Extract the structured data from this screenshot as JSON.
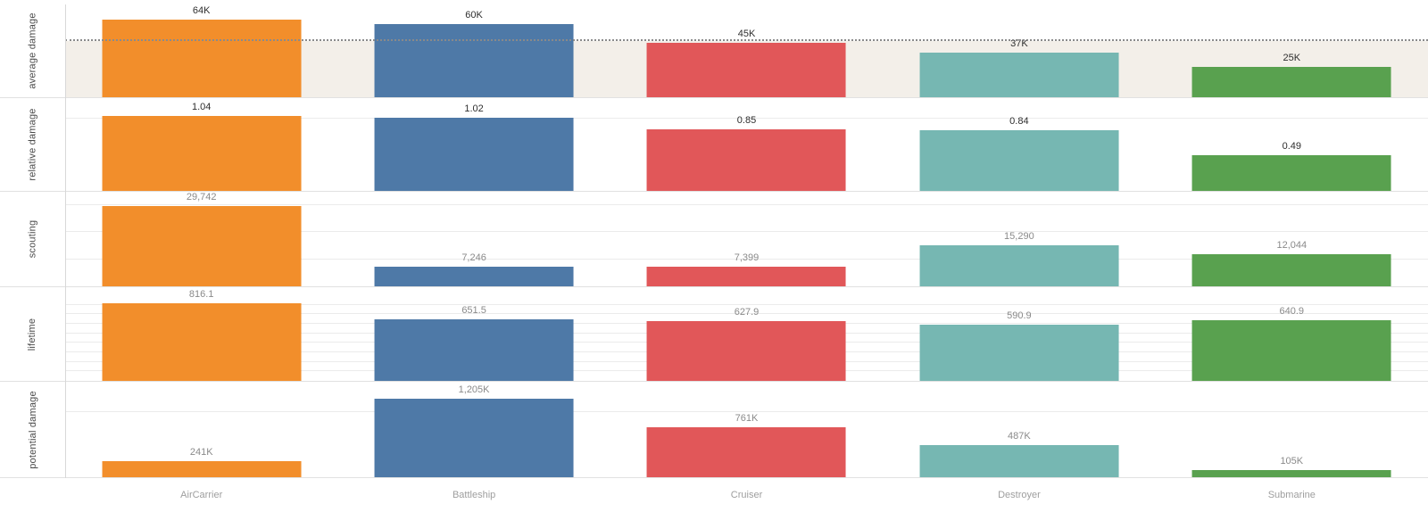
{
  "chart_data": {
    "type": "bar",
    "title": "",
    "categories": [
      "AirCarrier",
      "Battleship",
      "Cruiser",
      "Destroyer",
      "Submarine"
    ],
    "legend_position": "none",
    "grid": true,
    "rows": [
      {
        "metric": "average damage",
        "values": [
          64000,
          60000,
          45000,
          37000,
          25000
        ],
        "value_labels": [
          "64K",
          "60K",
          "45K",
          "37K",
          "25K"
        ],
        "axis_max": 64000,
        "gridlines": [],
        "reference_line": {
          "value": 46200,
          "style": "dotted",
          "band_below_fill": true
        },
        "muted_value_labels": false
      },
      {
        "metric": "relative damage",
        "values": [
          1.04,
          1.02,
          0.85,
          0.84,
          0.49
        ],
        "value_labels": [
          "1.04",
          "1.02",
          "0.85",
          "0.84",
          "0.49"
        ],
        "axis_max": 1.04,
        "gridlines": [
          1.0
        ],
        "reference_line": null,
        "muted_value_labels": false
      },
      {
        "metric": "scouting",
        "values": [
          29742,
          7246,
          7399,
          15290,
          12044
        ],
        "value_labels": [
          "29,742",
          "7,246",
          "7,399",
          "15,290",
          "12,044"
        ],
        "axis_max": 29742,
        "gridlines": [
          10000,
          20000,
          30000
        ],
        "reference_line": null,
        "muted_value_labels": true
      },
      {
        "metric": "lifetime",
        "values": [
          816.1,
          651.5,
          627.9,
          590.9,
          640.9
        ],
        "value_labels": [
          "816.1",
          "651.5",
          "627.9",
          "590.9",
          "640.9"
        ],
        "axis_max": 816.1,
        "gridlines": [
          100,
          200,
          300,
          400,
          500,
          600,
          700,
          800
        ],
        "reference_line": null,
        "muted_value_labels": true
      },
      {
        "metric": "potential damage",
        "values": [
          241000,
          1205000,
          761000,
          487000,
          105000
        ],
        "value_labels": [
          "241K",
          "1,205K",
          "761K",
          "487K",
          "105K"
        ],
        "axis_max": 1205000,
        "gridlines": [
          1000000
        ],
        "reference_line": null,
        "muted_value_labels": true
      }
    ]
  },
  "colors": {
    "bars": [
      "#F28E2B",
      "#4E79A7",
      "#E15759",
      "#76B7B2",
      "#59A14F"
    ],
    "reference_band": "#F3EFE9",
    "reference_line": "#8A8A8A",
    "gridline": "#EBEBEB",
    "row_separator": "#E1E1E1",
    "axis_line": "#D8D8D8",
    "value_label_dark": "#2E2E2E",
    "value_label_muted": "#8A8A8A",
    "category_label": "#9E9E9E",
    "row_label": "#4A4A4A"
  }
}
